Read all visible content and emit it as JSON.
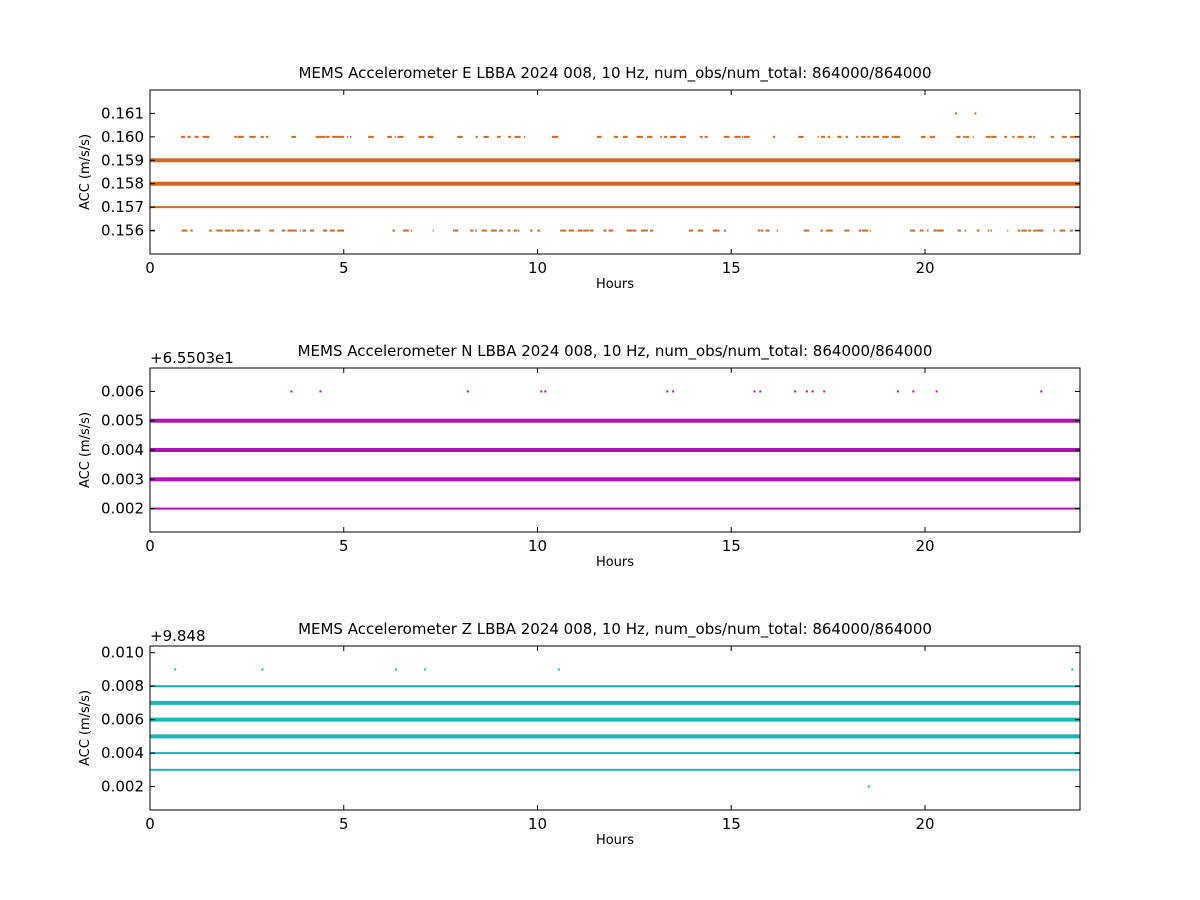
{
  "chart_data": [
    {
      "type": "scatter",
      "title": "MEMS Accelerometer E LBBA 2024 008, 10 Hz, num_obs/num_total: 864000/864000",
      "xlabel": "Hours",
      "ylabel": "ACC (m/s/s)",
      "xlim": [
        0,
        24
      ],
      "ylim": [
        0.155,
        0.162
      ],
      "x_ticks": [
        0,
        5,
        10,
        15,
        20
      ],
      "y_ticks": [
        0.156,
        0.157,
        0.158,
        0.159,
        0.16,
        0.161
      ],
      "y_tick_labels": [
        "0.156",
        "0.157",
        "0.158",
        "0.159",
        "0.160",
        "0.161"
      ],
      "offset_label": "",
      "grid": false,
      "color": "#d2691e",
      "series": [
        {
          "y": 0.156,
          "x_range": [
            0.0,
            24.0
          ],
          "density": "sparse"
        },
        {
          "y": 0.157,
          "x_range": [
            0.0,
            24.0
          ],
          "density": "dense"
        },
        {
          "y": 0.158,
          "x_range": [
            0.0,
            24.0
          ],
          "density": "solid"
        },
        {
          "y": 0.159,
          "x_range": [
            0.0,
            24.0
          ],
          "density": "solid"
        },
        {
          "y": 0.16,
          "x_range": [
            0.3,
            24.0
          ],
          "density": "sparse"
        },
        {
          "y": 0.161,
          "points": [
            20.8,
            21.3
          ]
        }
      ]
    },
    {
      "type": "scatter",
      "title": "MEMS Accelerometer N LBBA 2024 008, 10 Hz, num_obs/num_total: 864000/864000",
      "xlabel": "Hours",
      "ylabel": "ACC (m/s/s)",
      "xlim": [
        0,
        24
      ],
      "ylim": [
        0.0012,
        0.0068
      ],
      "x_ticks": [
        0,
        5,
        10,
        15,
        20
      ],
      "y_ticks": [
        0.002,
        0.003,
        0.004,
        0.005,
        0.006
      ],
      "y_tick_labels": [
        "0.002",
        "0.003",
        "0.004",
        "0.005",
        "0.006"
      ],
      "offset_label": "+6.5503e1",
      "grid": false,
      "color": "#b010b8",
      "series": [
        {
          "y": 0.002,
          "x_range": [
            0.0,
            24.0
          ],
          "density": "dense"
        },
        {
          "y": 0.003,
          "x_range": [
            0.0,
            24.0
          ],
          "density": "solid"
        },
        {
          "y": 0.004,
          "x_range": [
            0.0,
            24.0
          ],
          "density": "solid"
        },
        {
          "y": 0.005,
          "x_range": [
            0.0,
            24.0
          ],
          "density": "solid"
        },
        {
          "y": 0.006,
          "points": [
            3.65,
            4.4,
            8.2,
            10.1,
            10.2,
            13.35,
            13.5,
            15.6,
            15.75,
            16.65,
            16.95,
            17.1,
            17.4,
            19.3,
            19.7,
            20.3,
            23.0
          ]
        }
      ]
    },
    {
      "type": "scatter",
      "title": "MEMS Accelerometer Z LBBA 2024 008, 10 Hz, num_obs/num_total: 864000/864000",
      "xlabel": "Hours",
      "ylabel": "ACC (m/s/s)",
      "xlim": [
        0,
        24
      ],
      "ylim": [
        0.0006,
        0.0104
      ],
      "x_ticks": [
        0,
        5,
        10,
        15,
        20
      ],
      "y_ticks": [
        0.002,
        0.004,
        0.006,
        0.008,
        0.01
      ],
      "y_tick_labels": [
        "0.002",
        "0.004",
        "0.006",
        "0.008",
        "0.010"
      ],
      "offset_label": "+9.848",
      "grid": false,
      "color": "#17b8b8",
      "series": [
        {
          "y": 0.002,
          "points": [
            18.55
          ]
        },
        {
          "y": 0.003,
          "x_range": [
            0.0,
            24.0
          ],
          "density": "dense"
        },
        {
          "y": 0.004,
          "x_range": [
            0.0,
            24.0
          ],
          "density": "dense"
        },
        {
          "y": 0.005,
          "x_range": [
            0.0,
            24.0
          ],
          "density": "solid"
        },
        {
          "y": 0.006,
          "x_range": [
            0.0,
            24.0
          ],
          "density": "solid"
        },
        {
          "y": 0.007,
          "x_range": [
            0.0,
            24.0
          ],
          "density": "solid"
        },
        {
          "y": 0.008,
          "x_range": [
            0.0,
            24.0
          ],
          "density": "dense"
        },
        {
          "y": 0.009,
          "points": [
            0.65,
            2.9,
            6.35,
            7.1,
            10.55,
            23.8
          ]
        }
      ]
    }
  ]
}
